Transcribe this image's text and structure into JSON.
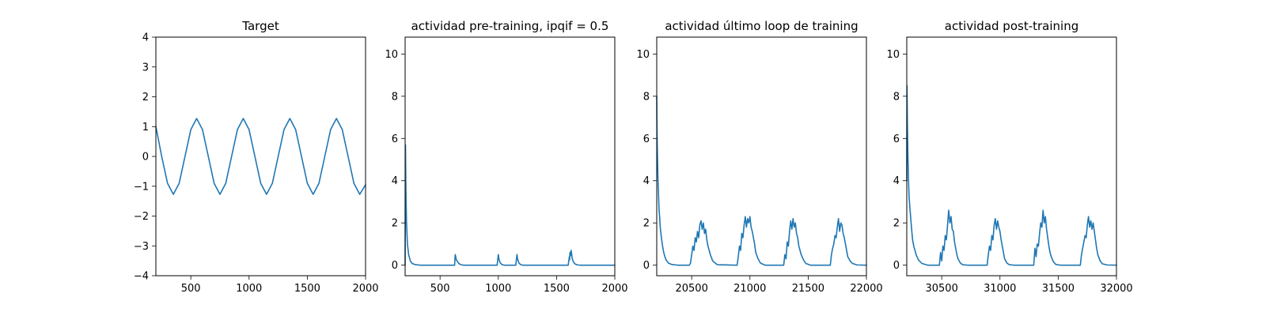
{
  "chart_data": [
    {
      "type": "line",
      "title": "Target",
      "xlim": [
        200,
        2000
      ],
      "ylim": [
        -4,
        4
      ],
      "xticks": [
        500,
        1000,
        1500,
        2000
      ],
      "yticks": [
        -4,
        -3,
        -2,
        -1,
        0,
        1,
        2,
        3,
        4
      ],
      "grid": false,
      "color": "#1f77b4",
      "series": [
        {
          "x": [
            200,
            250,
            300,
            350,
            400,
            450,
            500,
            550,
            600,
            650,
            700,
            750,
            800,
            850,
            900,
            950,
            1000,
            1050,
            1100,
            1150,
            1200,
            1250,
            1300,
            1350,
            1400,
            1450,
            1500,
            1550,
            1600,
            1650,
            1700,
            1750,
            1800,
            1850,
            1900,
            1950,
            2000
          ],
          "y": [
            1.0,
            0.0,
            -0.9,
            -1.27,
            -0.9,
            0.0,
            0.9,
            1.27,
            0.9,
            0.0,
            -0.9,
            -1.27,
            -0.9,
            0.0,
            0.9,
            1.27,
            0.9,
            0.0,
            -0.9,
            -1.27,
            -0.9,
            0.0,
            0.9,
            1.27,
            0.9,
            0.0,
            -0.9,
            -1.27,
            -0.9,
            0.0,
            0.9,
            1.27,
            0.9,
            0.0,
            -0.9,
            -1.27,
            -0.95
          ]
        }
      ]
    },
    {
      "type": "line",
      "title": "actividad pre-training, ipqif = 0.5",
      "xlim": [
        200,
        2000
      ],
      "ylim": [
        -0.5,
        10.8
      ],
      "xticks": [
        500,
        1000,
        1500,
        2000
      ],
      "yticks": [
        0,
        2,
        4,
        6,
        8,
        10
      ],
      "grid": false,
      "color": "#1f77b4",
      "series": [
        {
          "x": [
            200,
            203,
            207,
            212,
            220,
            230,
            245,
            260,
            290,
            330,
            400,
            600,
            625,
            630,
            640,
            660,
            680,
            700,
            990,
            1000,
            1005,
            1015,
            1030,
            1050,
            1150,
            1160,
            1165,
            1175,
            1190,
            1210,
            1600,
            1610,
            1612,
            1615,
            1620,
            1625,
            1630,
            1635,
            1645,
            1660,
            1680,
            1700,
            2000
          ],
          "y": [
            0.0,
            5.7,
            3.5,
            2.0,
            1.0,
            0.5,
            0.2,
            0.08,
            0.02,
            0.0,
            0.0,
            0.0,
            0.0,
            0.5,
            0.25,
            0.08,
            0.02,
            0.0,
            0.0,
            0.5,
            0.3,
            0.12,
            0.03,
            0.0,
            0.0,
            0.5,
            0.3,
            0.12,
            0.03,
            0.0,
            0.0,
            0.4,
            0.25,
            0.6,
            0.45,
            0.7,
            0.5,
            0.3,
            0.15,
            0.05,
            0.01,
            0.0,
            0.0
          ]
        }
      ]
    },
    {
      "type": "line",
      "title": "actividad último loop de training",
      "xlim": [
        20200,
        22000
      ],
      "ylim": [
        -0.5,
        10.8
      ],
      "xticks": [
        20500,
        21000,
        21500,
        22000
      ],
      "yticks": [
        0,
        2,
        4,
        6,
        8,
        10
      ],
      "grid": false,
      "color": "#1f77b4",
      "series": [
        {
          "x": [
            20200,
            20202,
            20205,
            20210,
            20215,
            20220,
            20225,
            20230,
            20240,
            20250,
            20260,
            20270,
            20280,
            20300,
            20330,
            20380,
            20480,
            20490,
            20500,
            20510,
            20520,
            20530,
            20540,
            20550,
            20560,
            20570,
            20580,
            20590,
            20600,
            20610,
            20620,
            20630,
            20640,
            20660,
            20680,
            20720,
            20890,
            20900,
            20910,
            20920,
            20930,
            20940,
            20950,
            20960,
            20970,
            20980,
            20990,
            21000,
            21010,
            21020,
            21030,
            21040,
            21050,
            21070,
            21090,
            21130,
            21290,
            21300,
            21310,
            21320,
            21330,
            21340,
            21350,
            21360,
            21370,
            21380,
            21390,
            21400,
            21410,
            21420,
            21430,
            21440,
            21460,
            21480,
            21520,
            21690,
            21700,
            21710,
            21720,
            21730,
            21740,
            21750,
            21760,
            21770,
            21780,
            21790,
            21800,
            21810,
            21820,
            21830,
            21840,
            21860,
            21880,
            21920,
            22000
          ],
          "y": [
            8.0,
            6.5,
            5.5,
            4.2,
            3.4,
            2.6,
            2.3,
            1.8,
            1.3,
            0.9,
            0.6,
            0.4,
            0.25,
            0.1,
            0.03,
            0.0,
            0.0,
            0.1,
            0.5,
            0.9,
            0.7,
            1.3,
            1.1,
            1.6,
            1.3,
            1.9,
            2.1,
            1.7,
            2.0,
            1.5,
            1.7,
            1.2,
            0.9,
            0.5,
            0.2,
            0.02,
            0.0,
            0.4,
            0.9,
            0.7,
            1.5,
            1.3,
            1.9,
            2.3,
            1.8,
            2.2,
            2.0,
            2.3,
            1.8,
            1.6,
            1.3,
            1.0,
            0.6,
            0.3,
            0.1,
            0.0,
            0.0,
            0.5,
            0.3,
            1.1,
            0.9,
            1.6,
            2.1,
            1.7,
            2.2,
            1.8,
            2.0,
            1.5,
            1.3,
            0.9,
            0.7,
            0.5,
            0.25,
            0.08,
            0.0,
            0.0,
            0.5,
            0.8,
            1.0,
            1.4,
            1.3,
            1.8,
            2.2,
            1.6,
            2.0,
            1.9,
            1.5,
            1.3,
            1.0,
            0.7,
            0.4,
            0.2,
            0.08,
            0.01,
            0.0
          ]
        }
      ]
    },
    {
      "type": "line",
      "title": "actividad post-training",
      "xlim": [
        30200,
        32000
      ],
      "ylim": [
        -0.5,
        10.8
      ],
      "xticks": [
        30500,
        31000,
        31500,
        32000
      ],
      "yticks": [
        0,
        2,
        4,
        6,
        8,
        10
      ],
      "grid": false,
      "color": "#1f77b4",
      "series": [
        {
          "x": [
            30200,
            30202,
            30205,
            30210,
            30215,
            30220,
            30230,
            30240,
            30250,
            30260,
            30280,
            30300,
            30330,
            30380,
            30480,
            30490,
            30500,
            30510,
            30520,
            30530,
            30540,
            30550,
            30560,
            30570,
            30580,
            30590,
            30600,
            30610,
            30620,
            30630,
            30640,
            30660,
            30680,
            30720,
            30890,
            30900,
            30910,
            30920,
            30930,
            30940,
            30950,
            30960,
            30970,
            30980,
            30990,
            31000,
            31010,
            31020,
            31030,
            31040,
            31060,
            31080,
            31120,
            31290,
            31300,
            31310,
            31320,
            31330,
            31340,
            31350,
            31360,
            31370,
            31380,
            31390,
            31400,
            31410,
            31420,
            31430,
            31440,
            31460,
            31480,
            31520,
            31690,
            31700,
            31710,
            31720,
            31730,
            31740,
            31750,
            31760,
            31770,
            31780,
            31790,
            31800,
            31810,
            31820,
            31830,
            31840,
            31860,
            31880,
            31920,
            32000
          ],
          "y": [
            4.0,
            8.5,
            6.8,
            5.2,
            4.0,
            3.2,
            2.5,
            1.8,
            1.2,
            0.9,
            0.5,
            0.25,
            0.08,
            0.0,
            0.0,
            0.6,
            0.2,
            0.9,
            0.7,
            1.4,
            1.2,
            1.9,
            2.6,
            2.0,
            2.3,
            1.7,
            1.6,
            1.1,
            0.8,
            0.5,
            0.3,
            0.1,
            0.02,
            0.0,
            0.0,
            0.5,
            0.9,
            0.7,
            1.4,
            1.2,
            1.9,
            2.2,
            1.7,
            2.1,
            1.8,
            1.6,
            1.2,
            0.9,
            0.6,
            0.3,
            0.1,
            0.02,
            0.0,
            0.0,
            0.8,
            0.4,
            1.0,
            0.9,
            1.5,
            2.0,
            1.8,
            2.6,
            2.0,
            2.3,
            1.7,
            1.3,
            0.9,
            0.6,
            0.4,
            0.15,
            0.03,
            0.0,
            0.0,
            0.5,
            0.8,
            1.1,
            1.4,
            1.3,
            1.9,
            2.3,
            1.8,
            2.1,
            1.7,
            2.0,
            1.6,
            1.2,
            0.8,
            0.5,
            0.2,
            0.06,
            0.01,
            0.0
          ]
        }
      ]
    }
  ]
}
